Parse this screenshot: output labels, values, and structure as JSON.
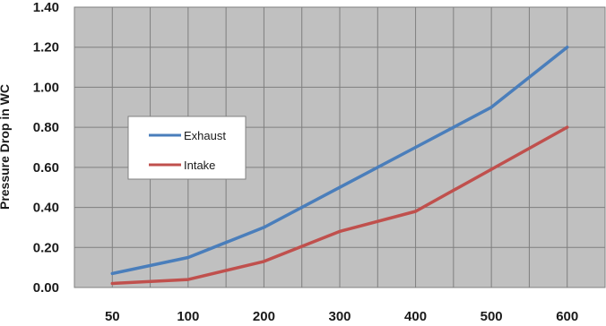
{
  "chart_data": {
    "type": "line",
    "categories": [
      "50",
      "100",
      "200",
      "300",
      "400",
      "500",
      "600"
    ],
    "series": [
      {
        "name": "Exhaust",
        "color": "#4a7ebb",
        "values": [
          0.07,
          0.15,
          0.3,
          0.5,
          0.7,
          0.9,
          1.2
        ]
      },
      {
        "name": "Intake",
        "color": "#c0504d",
        "values": [
          0.02,
          0.04,
          0.13,
          0.28,
          0.38,
          0.59,
          0.8
        ]
      }
    ],
    "ylabel": "Pressure Drop in WC",
    "ylim": [
      0,
      1.4
    ],
    "yticks": [
      "0.00",
      "0.20",
      "0.40",
      "0.60",
      "0.80",
      "1.00",
      "1.20",
      "1.40"
    ],
    "grid": true,
    "plot_background": "#c0c0c0",
    "legend": "inside-left"
  }
}
